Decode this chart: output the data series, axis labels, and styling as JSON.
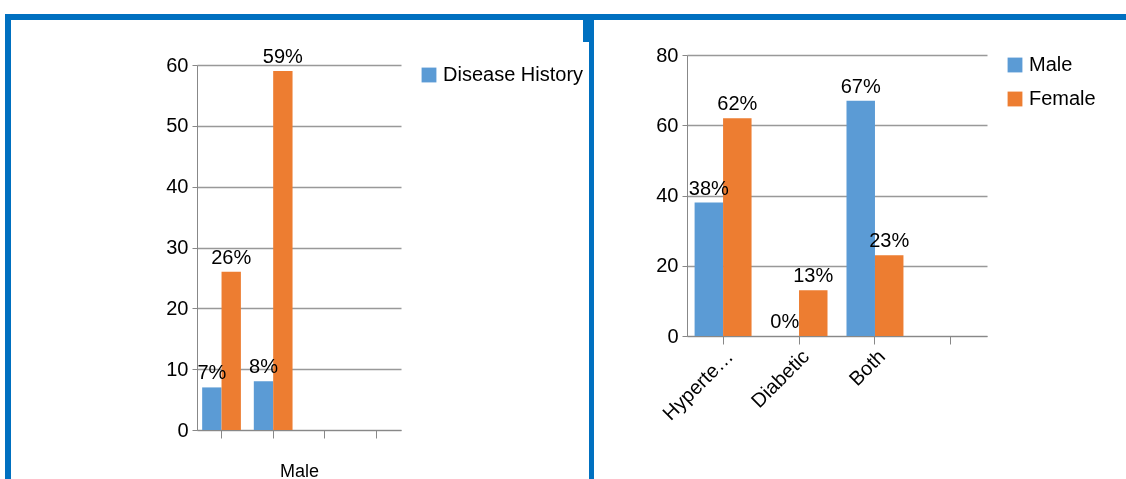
{
  "chart_data": [
    {
      "type": "bar",
      "xlabel": "Male",
      "categories": [
        null,
        null,
        null,
        null
      ],
      "ylim": [
        0,
        60
      ],
      "yticks": [
        0,
        10,
        20,
        30,
        40,
        50,
        60
      ],
      "grid": "y",
      "legend": "right",
      "series": [
        {
          "name": "Disease History",
          "color": "#5b9bd5",
          "values": [
            7,
            8,
            null,
            null
          ],
          "value_labels": [
            "7%",
            "8%",
            null,
            null
          ]
        },
        {
          "color": "#ed7d31",
          "values": [
            26,
            59,
            null,
            null
          ],
          "value_labels": [
            "26%",
            "59%",
            null,
            null
          ]
        }
      ]
    },
    {
      "type": "bar",
      "categories": [
        "Hyperte…",
        "Diabetic",
        "Both",
        null
      ],
      "ylim": [
        0,
        80
      ],
      "yticks": [
        0,
        20,
        40,
        60,
        80
      ],
      "grid": "y",
      "legend": "right",
      "series": [
        {
          "name": "Male",
          "color": "#5b9bd5",
          "values": [
            38,
            0,
            67,
            null
          ],
          "value_labels": [
            "38%",
            "0%",
            "67%",
            null
          ]
        },
        {
          "name": "Female",
          "color": "#ed7d31",
          "values": [
            62,
            13,
            23,
            null
          ],
          "value_labels": [
            "62%",
            "13%",
            "23%",
            null
          ]
        }
      ]
    }
  ]
}
